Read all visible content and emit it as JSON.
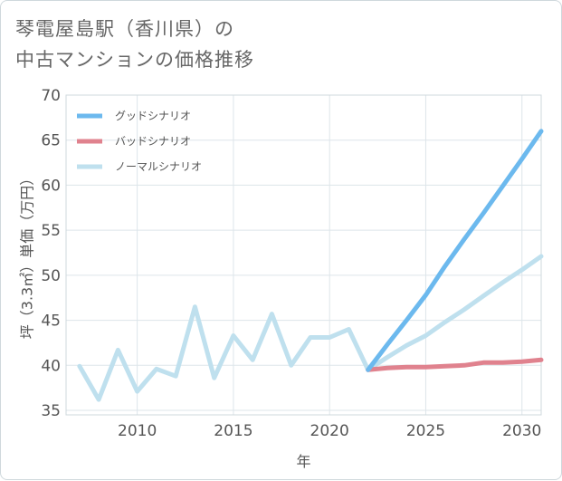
{
  "title": {
    "line1": "琴電屋島駅（香川県）の",
    "line2": "中古マンションの価格推移"
  },
  "chart_data": {
    "type": "line",
    "xlabel": "年",
    "ylabel": "坪（3.3㎡）単価（万円）",
    "xlim": [
      2006.3,
      2031
    ],
    "ylim": [
      34.5,
      70
    ],
    "xticks": [
      2010,
      2015,
      2020,
      2025,
      2030
    ],
    "yticks": [
      35,
      40,
      45,
      50,
      55,
      60,
      65,
      70
    ],
    "grid": true,
    "legend_position": "top-left",
    "series": [
      {
        "name": "グッドシナリオ",
        "color": "#6cb9ee",
        "x": [
          2022,
          2023,
          2024,
          2025,
          2026,
          2027,
          2028,
          2029,
          2030,
          2031
        ],
        "y": [
          39.5,
          42.3,
          45.0,
          47.8,
          51.0,
          54.0,
          56.9,
          59.9,
          62.9,
          66.0
        ]
      },
      {
        "name": "バッドシナリオ",
        "color": "#e0828e",
        "x": [
          2022,
          2023,
          2024,
          2025,
          2026,
          2027,
          2028,
          2029,
          2030,
          2031
        ],
        "y": [
          39.5,
          39.7,
          39.8,
          39.8,
          39.9,
          40.0,
          40.3,
          40.3,
          40.4,
          40.6
        ]
      },
      {
        "name": "ノーマルシナリオ",
        "color": "#bfe0ee",
        "x": [
          2007,
          2008,
          2009,
          2010,
          2011,
          2012,
          2013,
          2014,
          2015,
          2016,
          2017,
          2018,
          2019,
          2020,
          2021,
          2022,
          2023,
          2024,
          2025,
          2026,
          2027,
          2028,
          2029,
          2030,
          2031
        ],
        "y": [
          39.9,
          36.2,
          41.7,
          37.1,
          39.6,
          38.8,
          46.5,
          38.6,
          43.3,
          40.6,
          45.7,
          40.0,
          43.1,
          43.1,
          44.0,
          39.5,
          40.9,
          42.2,
          43.3,
          44.8,
          46.2,
          47.7,
          49.2,
          50.6,
          52.1
        ]
      }
    ]
  }
}
